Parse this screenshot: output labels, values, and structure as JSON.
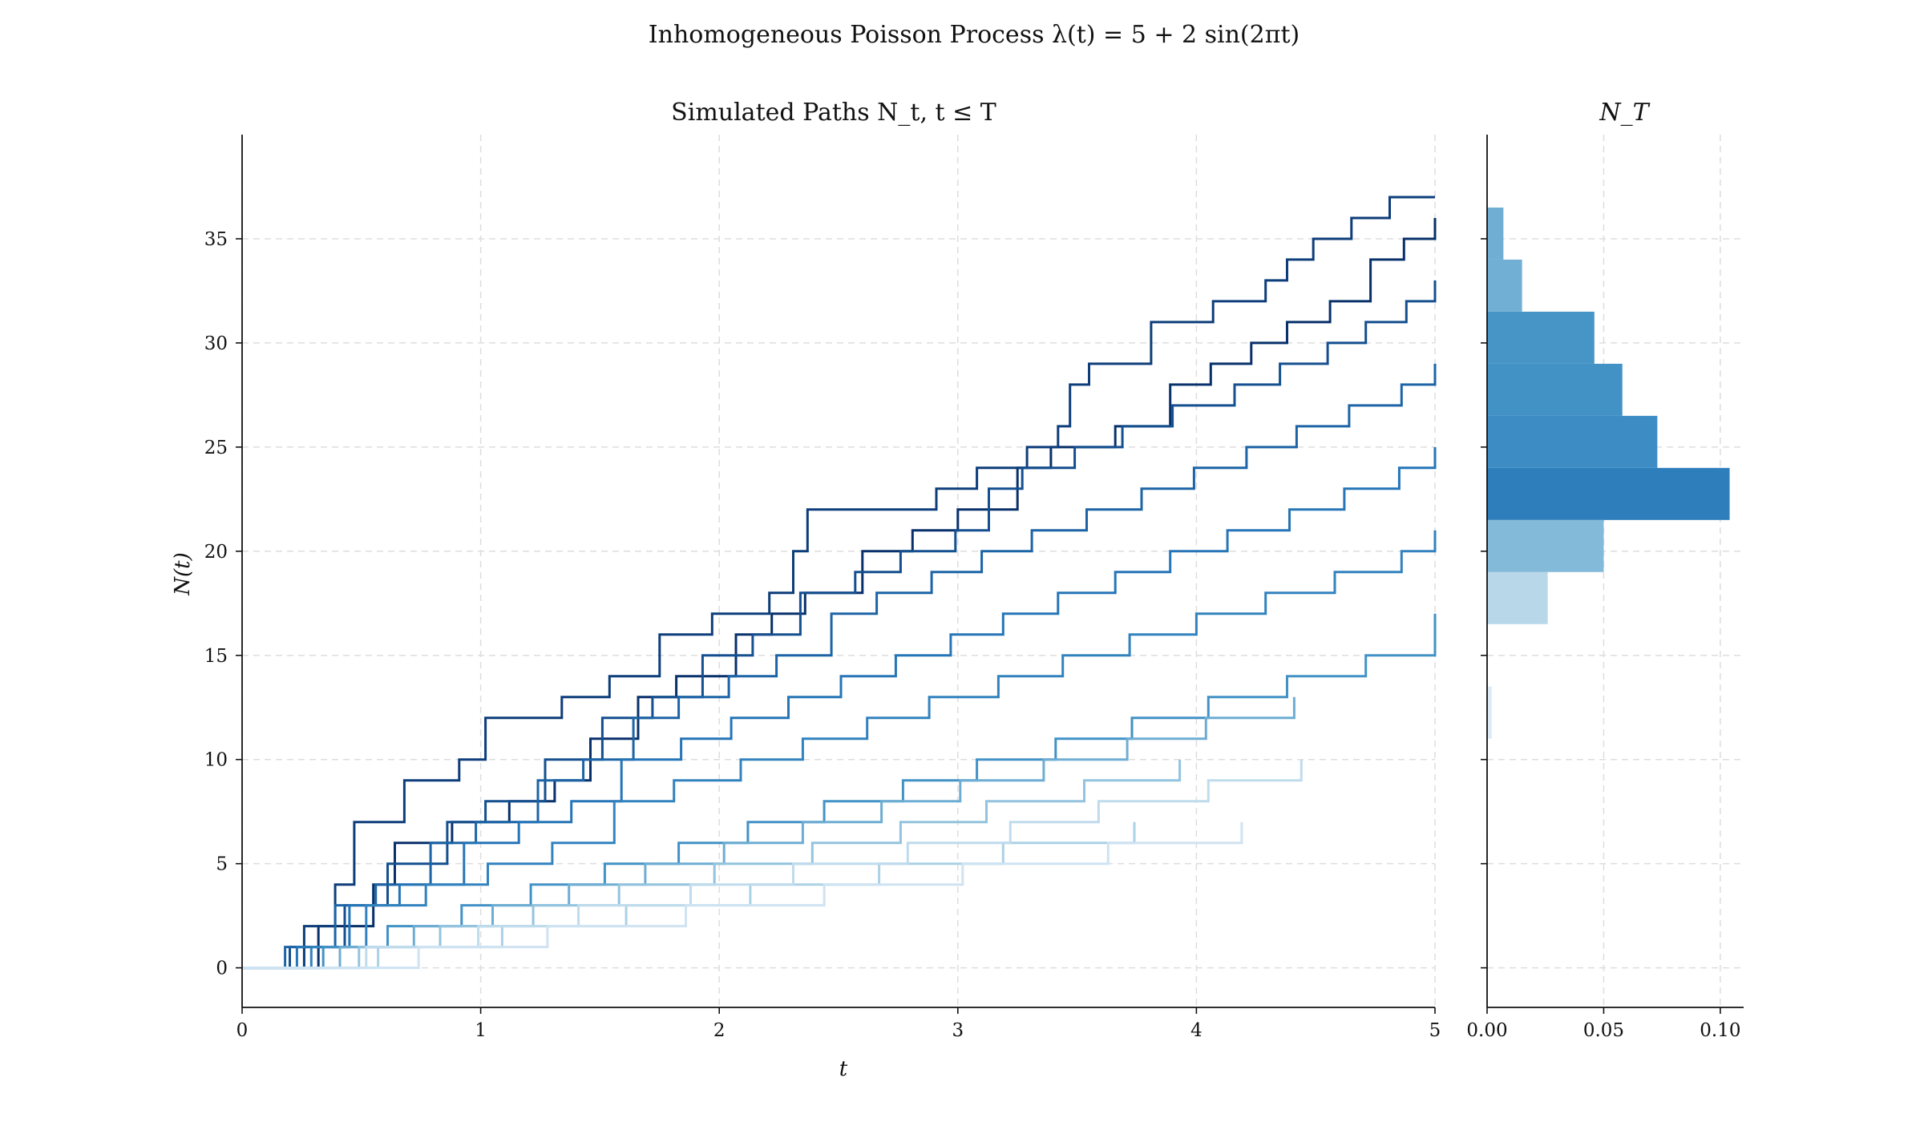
{
  "suptitle": "Inhomogeneous Poisson Process λ(t) = 5 + 2 sin(2πt)",
  "chart_data": [
    {
      "type": "line",
      "title": "Simulated Paths N_t, t ≤ T",
      "xlabel": "t",
      "ylabel": "N(t)",
      "xlim": [
        0,
        5
      ],
      "ylim": [
        -1.9,
        40
      ],
      "xticks": [
        "0",
        "1",
        "2",
        "3",
        "4",
        "5"
      ],
      "yticks": [
        "0",
        "5",
        "10",
        "15",
        "20",
        "25",
        "30",
        "35"
      ],
      "grid": true,
      "colormap": "Blues",
      "series": [
        {
          "x": [
            0,
            0.32,
            0.55,
            0.64,
            0.88,
            1.12,
            1.31,
            1.46,
            1.66,
            1.82,
            2.07,
            2.22,
            2.36,
            2.6,
            2.81,
            3.0,
            3.25,
            3.39,
            3.66,
            3.89,
            4.06,
            4.23,
            4.38,
            4.56,
            4.73,
            4.87,
            5.0
          ],
          "y": [
            0,
            2,
            4,
            6,
            7,
            8,
            9,
            11,
            13,
            14,
            16,
            17,
            18,
            20,
            21,
            22,
            24,
            25,
            26,
            28,
            29,
            30,
            31,
            32,
            34,
            35,
            36
          ],
          "shade": 1.0
        },
        {
          "x": [
            0,
            0.26,
            0.39,
            0.47,
            0.68,
            0.91,
            1.02,
            1.34,
            1.54,
            1.75,
            1.97,
            2.21,
            2.31,
            2.37,
            2.91,
            3.08,
            3.29,
            3.42,
            3.47,
            3.55,
            3.81,
            4.07,
            4.29,
            4.38,
            4.49,
            4.65,
            4.81,
            5.0
          ],
          "y": [
            0,
            2,
            4,
            7,
            9,
            10,
            12,
            13,
            14,
            16,
            17,
            18,
            20,
            22,
            23,
            24,
            25,
            26,
            28,
            29,
            31,
            32,
            33,
            34,
            35,
            36,
            37,
            37
          ],
          "shade": 0.95
        },
        {
          "x": [
            0,
            0.2,
            0.43,
            0.61,
            0.86,
            1.02,
            1.27,
            1.51,
            1.72,
            1.93,
            2.14,
            2.34,
            2.57,
            2.76,
            2.99,
            3.13,
            3.27,
            3.49,
            3.69,
            3.9,
            4.16,
            4.35,
            4.55,
            4.71,
            4.88,
            5.0
          ],
          "y": [
            0,
            1,
            3,
            5,
            7,
            8,
            10,
            12,
            13,
            15,
            16,
            18,
            19,
            20,
            21,
            23,
            24,
            25,
            26,
            27,
            28,
            29,
            30,
            31,
            32,
            33
          ],
          "shade": 0.88
        },
        {
          "x": [
            0,
            0.18,
            0.39,
            0.56,
            0.79,
            0.98,
            1.24,
            1.43,
            1.64,
            1.83,
            2.04,
            2.24,
            2.47,
            2.66,
            2.89,
            3.1,
            3.31,
            3.54,
            3.77,
            3.99,
            4.21,
            4.42,
            4.64,
            4.86,
            5.0
          ],
          "y": [
            0,
            1,
            3,
            4,
            6,
            7,
            9,
            10,
            12,
            13,
            14,
            15,
            17,
            18,
            19,
            20,
            21,
            22,
            23,
            24,
            25,
            26,
            27,
            28,
            29
          ],
          "shade": 0.8
        },
        {
          "x": [
            0,
            0.23,
            0.45,
            0.66,
            0.93,
            1.16,
            1.38,
            1.59,
            1.84,
            2.05,
            2.29,
            2.51,
            2.74,
            2.97,
            3.19,
            3.42,
            3.66,
            3.89,
            4.13,
            4.39,
            4.62,
            4.85,
            5.0
          ],
          "y": [
            0,
            1,
            3,
            4,
            6,
            7,
            8,
            10,
            11,
            12,
            13,
            14,
            15,
            16,
            17,
            18,
            19,
            20,
            21,
            22,
            23,
            24,
            25
          ],
          "shade": 0.72
        },
        {
          "x": [
            0,
            0.29,
            0.52,
            0.77,
            1.03,
            1.3,
            1.56,
            1.81,
            2.09,
            2.35,
            2.62,
            2.88,
            3.17,
            3.44,
            3.72,
            4.0,
            4.29,
            4.58,
            4.86,
            5.0
          ],
          "y": [
            0,
            1,
            3,
            4,
            5,
            6,
            8,
            9,
            10,
            11,
            12,
            13,
            14,
            15,
            16,
            17,
            18,
            19,
            20,
            21
          ],
          "shade": 0.62
        },
        {
          "x": [
            0,
            0.34,
            0.61,
            0.92,
            1.21,
            1.52,
            1.83,
            2.12,
            2.44,
            2.77,
            3.08,
            3.41,
            3.73,
            4.05,
            4.38,
            4.71,
            5.0
          ],
          "y": [
            0,
            1,
            2,
            3,
            4,
            5,
            6,
            7,
            8,
            9,
            10,
            11,
            12,
            13,
            14,
            15,
            17
          ],
          "shade": 0.5
        },
        {
          "x": [
            0,
            0.41,
            0.72,
            1.05,
            1.37,
            1.69,
            2.02,
            2.35,
            2.68,
            3.01,
            3.36,
            3.71,
            4.04,
            4.41
          ],
          "y": [
            0,
            1,
            2,
            3,
            4,
            5,
            6,
            7,
            8,
            9,
            10,
            11,
            12,
            13
          ],
          "shade": 0.38
        },
        {
          "x": [
            0,
            0.49,
            0.83,
            1.22,
            1.58,
            1.98,
            2.39,
            2.76,
            3.12,
            3.53,
            3.93
          ],
          "y": [
            0,
            1,
            2,
            3,
            4,
            5,
            6,
            7,
            8,
            9,
            10
          ],
          "shade": 0.28
        },
        {
          "x": [
            0,
            0.57,
            1.09,
            1.61,
            2.13,
            2.67,
            3.19,
            3.74
          ],
          "y": [
            0,
            1,
            2,
            3,
            4,
            5,
            6,
            7
          ],
          "shade": 0.2
        },
        {
          "x": [
            0,
            0.52,
            0.99,
            1.41,
            1.88,
            2.31,
            2.79,
            3.22,
            3.59,
            4.05,
            4.44
          ],
          "y": [
            0,
            1,
            2,
            3,
            4,
            5,
            6,
            7,
            8,
            9,
            10
          ],
          "shade": 0.12
        },
        {
          "x": [
            0,
            0.74,
            1.28,
            1.86,
            2.44,
            3.02,
            3.63,
            4.19
          ],
          "y": [
            0,
            1,
            2,
            3,
            4,
            5,
            6,
            7
          ],
          "shade": 0.06
        }
      ]
    },
    {
      "type": "bar",
      "orientation": "horizontal",
      "title": "N_T",
      "xlim": [
        0,
        0.11
      ],
      "xticks": [
        "0.00",
        "0.05",
        "0.10"
      ],
      "ylim": [
        -1.9,
        40
      ],
      "grid": true,
      "colormap": "Blues",
      "bins": [
        {
          "y0": 11.0,
          "y1": 13.5,
          "value": 0.002
        },
        {
          "y0": 16.5,
          "y1": 19.0,
          "value": 0.026
        },
        {
          "y0": 19.0,
          "y1": 21.5,
          "value": 0.05
        },
        {
          "y0": 21.5,
          "y1": 24.0,
          "value": 0.104
        },
        {
          "y0": 24.0,
          "y1": 26.5,
          "value": 0.073
        },
        {
          "y0": 26.5,
          "y1": 29.0,
          "value": 0.058
        },
        {
          "y0": 29.0,
          "y1": 31.5,
          "value": 0.046
        },
        {
          "y0": 31.5,
          "y1": 34.0,
          "value": 0.015
        },
        {
          "y0": 34.0,
          "y1": 36.5,
          "value": 0.007
        }
      ]
    }
  ]
}
